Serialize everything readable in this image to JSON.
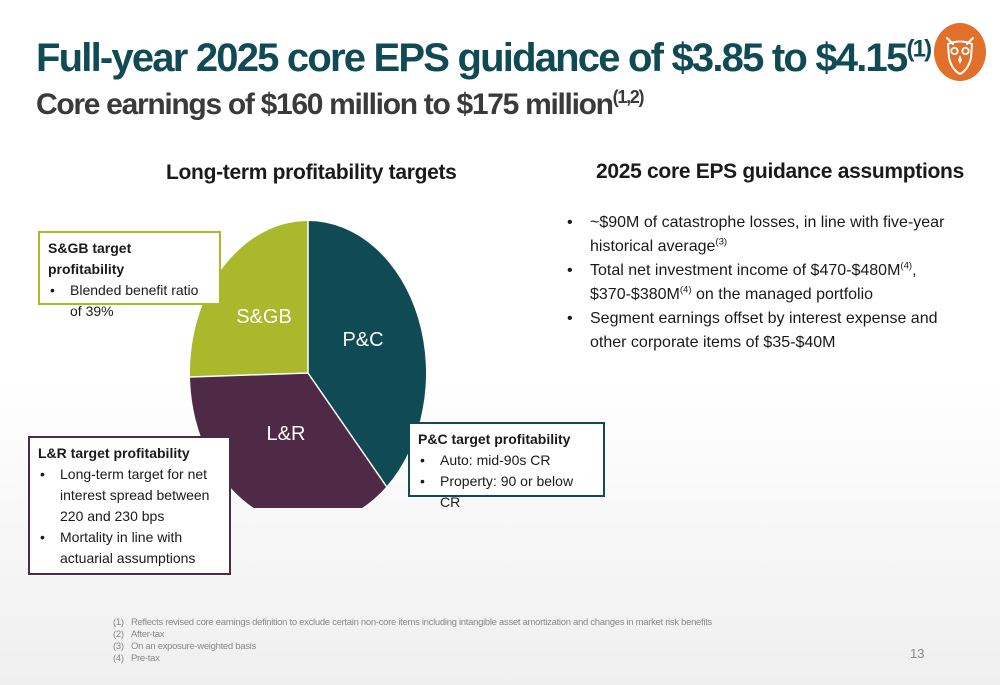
{
  "header": {
    "title": "Full-year 2025 core EPS guidance of $3.85 to $4.15",
    "title_sup": "(1)",
    "subtitle": "Core earnings of $160 million to $175 million",
    "subtitle_sup": "(1,2)",
    "logo_icon": "owl-logo-icon",
    "logo_color": "#e2702b"
  },
  "left": {
    "heading": "Long-term profitability targets",
    "pie": {
      "slices": [
        {
          "label": "P&C",
          "color": "#0f4a55"
        },
        {
          "label": "L&R",
          "color": "#4e2a47"
        },
        {
          "label": "S&GB",
          "color": "#a9b92b"
        }
      ]
    },
    "callouts": {
      "sgb": {
        "title": "S&GB target profitability",
        "border_color": "#a9b92b",
        "items": [
          "Blended benefit ratio of 39%"
        ]
      },
      "lr": {
        "title": "L&R target profitability",
        "border_color": "#4e2a47",
        "items": [
          "Long-term target for net interest spread between 220 and 230 bps",
          "Mortality in line with actuarial assumptions"
        ]
      },
      "pc": {
        "title": "P&C target profitability",
        "border_color": "#0f4a55",
        "items": [
          "Auto: mid-90s CR",
          "Property: 90 or below CR"
        ]
      }
    }
  },
  "right": {
    "heading": "2025 core EPS guidance assumptions",
    "bullets": [
      {
        "t1": "~$90M of catastrophe losses, in line with five-year historical average",
        "s1": "(3)"
      },
      {
        "t1": "Total net investment income of $470-$480M",
        "s1": "(4)",
        "t2": ", $370-$380M",
        "s2": "(4)",
        "t3": " on the managed portfolio"
      },
      {
        "t1": "Segment earnings offset by interest expense and other corporate items of $35-$40M"
      }
    ]
  },
  "footnotes": [
    {
      "num": "(1)",
      "text": "Reflects revised core earnings definition to exclude certain non-core items including intangible asset amortization and changes in market risk benefits"
    },
    {
      "num": "(2)",
      "text": "After-tax"
    },
    {
      "num": "(3)",
      "text": "On an exposure-weighted basis"
    },
    {
      "num": "(4)",
      "text": "Pre-tax"
    }
  ],
  "page_number": "13"
}
